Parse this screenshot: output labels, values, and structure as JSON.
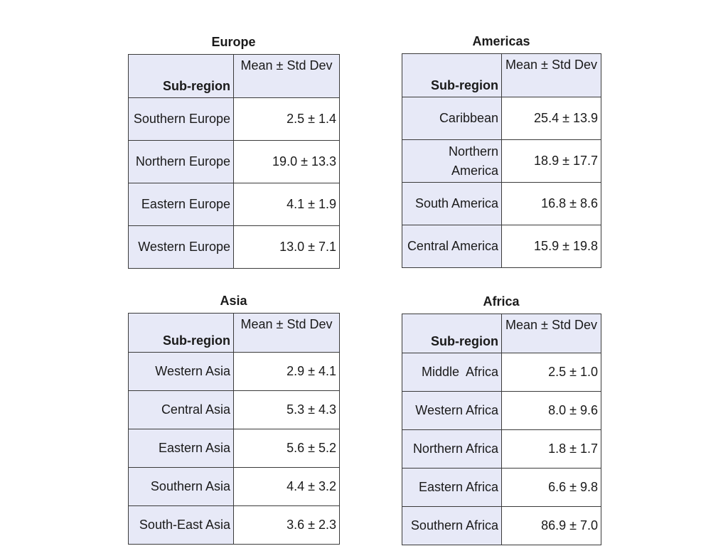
{
  "tables": {
    "europe": {
      "title": "Europe",
      "header": {
        "col1": "Sub-region",
        "col2": "Mean ± Std Dev"
      },
      "rows": [
        {
          "subregion": "Southern Europe",
          "value": "2.5 ± 1.4"
        },
        {
          "subregion": "Northern Europe",
          "value": "19.0 ± 13.3"
        },
        {
          "subregion": "Eastern Europe",
          "value": "4.1 ± 1.9"
        },
        {
          "subregion": "Western Europe",
          "value": "13.0 ± 7.1"
        }
      ]
    },
    "americas": {
      "title": "Americas",
      "header": {
        "col1": "Sub-region",
        "col2": "Mean ± Std Dev"
      },
      "rows": [
        {
          "subregion": "Caribbean",
          "value": "25.4 ± 13.9"
        },
        {
          "subregion": "Northern America",
          "value": "18.9 ± 17.7"
        },
        {
          "subregion": "South America",
          "value": "16.8 ± 8.6"
        },
        {
          "subregion": "Central America",
          "value": "15.9 ± 19.8"
        }
      ]
    },
    "asia": {
      "title": "Asia",
      "header": {
        "col1": "Sub-region",
        "col2": "Mean ± Std Dev"
      },
      "rows": [
        {
          "subregion": "Western Asia",
          "value": "2.9 ± 4.1"
        },
        {
          "subregion": "Central Asia",
          "value": "5.3 ± 4.3"
        },
        {
          "subregion": "Eastern Asia",
          "value": "5.6 ± 5.2"
        },
        {
          "subregion": "Southern Asia",
          "value": "4.4 ± 3.2"
        },
        {
          "subregion": "South-East Asia",
          "value": "3.6 ± 2.3"
        }
      ]
    },
    "africa": {
      "title": "Africa",
      "header": {
        "col1": "Sub-region",
        "col2": "Mean ± Std Dev"
      },
      "rows": [
        {
          "subregion": "Middle  Africa",
          "value": "2.5 ± 1.0"
        },
        {
          "subregion": "Western Africa",
          "value": "8.0 ± 9.6"
        },
        {
          "subregion": "Northern Africa",
          "value": "1.8 ± 1.7"
        },
        {
          "subregion": "Eastern Africa",
          "value": "6.6 ± 9.8"
        },
        {
          "subregion": "Southern Africa",
          "value": "86.9 ± 7.0"
        }
      ]
    }
  },
  "colors": {
    "header_fill": "#e7e9f7",
    "subregion_fill": "#e7e9f7",
    "value_fill": "#ffffff",
    "border": "#3a3a3a"
  }
}
